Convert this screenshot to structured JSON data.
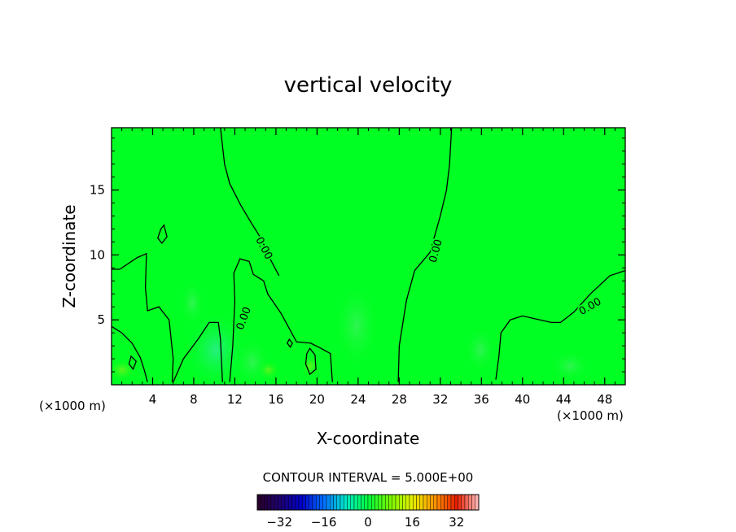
{
  "chart_data": {
    "type": "heatmap",
    "title": "vertical velocity",
    "xlabel": "X-coordinate",
    "ylabel": "Z-coordinate",
    "x_unit_left": "(×1000 m)",
    "x_unit_right": "(×1000 m)",
    "xlim": [
      0,
      50
    ],
    "ylim": [
      0,
      19.8
    ],
    "x_ticks": [
      4,
      8,
      12,
      16,
      20,
      24,
      28,
      32,
      36,
      40,
      44,
      48
    ],
    "y_ticks": [
      5,
      10,
      15
    ],
    "contour_interval_text": "CONTOUR INTERVAL = 5.000E+00",
    "contour_level_labels": [
      "0.00",
      "0.00",
      "0.00",
      "0.00"
    ],
    "colorbar": {
      "range": [
        -40,
        40
      ],
      "tick_values": [
        -32,
        -16,
        0,
        16,
        32
      ],
      "tick_labels": [
        "-32",
        "-16",
        "0",
        "16",
        "32"
      ]
    },
    "background_color": "#00ff22",
    "zero_contours": [
      [
        [
          10.6,
          19.8
        ],
        [
          11.0,
          17.0
        ],
        [
          11.5,
          15.5
        ],
        [
          12.6,
          13.8
        ],
        [
          13.5,
          12.6
        ],
        [
          14.6,
          11.2
        ],
        [
          15.5,
          9.6
        ],
        [
          16.3,
          8.4
        ]
      ],
      [
        [
          33.1,
          19.8
        ],
        [
          32.9,
          17.0
        ],
        [
          32.6,
          15.0
        ],
        [
          32.0,
          13.0
        ],
        [
          31.0,
          10.2
        ],
        [
          29.5,
          8.8
        ],
        [
          28.7,
          6.5
        ],
        [
          28.0,
          3.0
        ],
        [
          27.9,
          0.2
        ]
      ],
      [
        [
          50.0,
          8.8
        ],
        [
          48.5,
          8.4
        ],
        [
          46.6,
          7.0
        ],
        [
          45.0,
          5.6
        ],
        [
          43.7,
          4.8
        ],
        [
          42.8,
          4.8
        ],
        [
          40.0,
          5.3
        ],
        [
          38.8,
          5.0
        ],
        [
          37.9,
          4.0
        ],
        [
          37.7,
          2.2
        ],
        [
          37.4,
          0.4
        ]
      ],
      [
        [
          0.0,
          8.9
        ],
        [
          0.8,
          8.9
        ],
        [
          2.5,
          9.8
        ],
        [
          3.4,
          10.1
        ],
        [
          3.3,
          7.5
        ],
        [
          3.5,
          5.7
        ],
        [
          4.6,
          6.0
        ],
        [
          5.6,
          5.0
        ],
        [
          6.0,
          2.0
        ],
        [
          5.9,
          0.2
        ]
      ],
      [
        [
          11.5,
          0.2
        ],
        [
          11.8,
          3.0
        ],
        [
          12.0,
          6.4
        ],
        [
          11.9,
          8.6
        ],
        [
          12.5,
          9.7
        ],
        [
          13.4,
          9.5
        ],
        [
          13.8,
          8.5
        ],
        [
          14.8,
          8.0
        ],
        [
          15.2,
          7.0
        ],
        [
          16.5,
          5.5
        ],
        [
          18.0,
          3.3
        ],
        [
          19.4,
          3.2
        ],
        [
          20.4,
          2.8
        ],
        [
          21.3,
          2.4
        ],
        [
          21.5,
          0.2
        ]
      ],
      [
        [
          0.0,
          4.5
        ],
        [
          1.0,
          4.0
        ],
        [
          2.0,
          3.2
        ],
        [
          2.8,
          2.1
        ],
        [
          3.2,
          1.1
        ],
        [
          3.5,
          0.2
        ]
      ],
      [
        [
          6.0,
          0.2
        ],
        [
          7.0,
          2.0
        ],
        [
          8.5,
          3.6
        ],
        [
          9.5,
          4.8
        ],
        [
          10.4,
          4.8
        ],
        [
          10.6,
          3.5
        ],
        [
          10.8,
          0.2
        ]
      ]
    ],
    "closed_contours": [
      [
        [
          5.1,
          12.3
        ],
        [
          5.4,
          11.4
        ],
        [
          4.9,
          10.9
        ],
        [
          4.5,
          11.3
        ],
        [
          4.8,
          12.0
        ]
      ],
      [
        [
          19.3,
          2.8
        ],
        [
          19.8,
          2.3
        ],
        [
          19.9,
          1.2
        ],
        [
          19.3,
          0.8
        ],
        [
          18.9,
          1.6
        ],
        [
          19.0,
          2.4
        ]
      ],
      [
        [
          1.9,
          2.2
        ],
        [
          2.4,
          1.8
        ],
        [
          2.1,
          1.2
        ],
        [
          1.7,
          1.6
        ]
      ],
      [
        [
          17.3,
          3.5
        ],
        [
          17.6,
          3.2
        ],
        [
          17.4,
          2.9
        ],
        [
          17.1,
          3.2
        ]
      ]
    ],
    "contour_label_positions": [
      {
        "text": "0.00",
        "x": 14.8,
        "y": 10.5,
        "angle": 62
      },
      {
        "text": "0.00",
        "x": 12.9,
        "y": 5.1,
        "angle": -70
      },
      {
        "text": "0.00",
        "x": 31.6,
        "y": 10.3,
        "angle": -75
      },
      {
        "text": "0.00",
        "x": 46.6,
        "y": 6.0,
        "angle": -30
      }
    ]
  }
}
